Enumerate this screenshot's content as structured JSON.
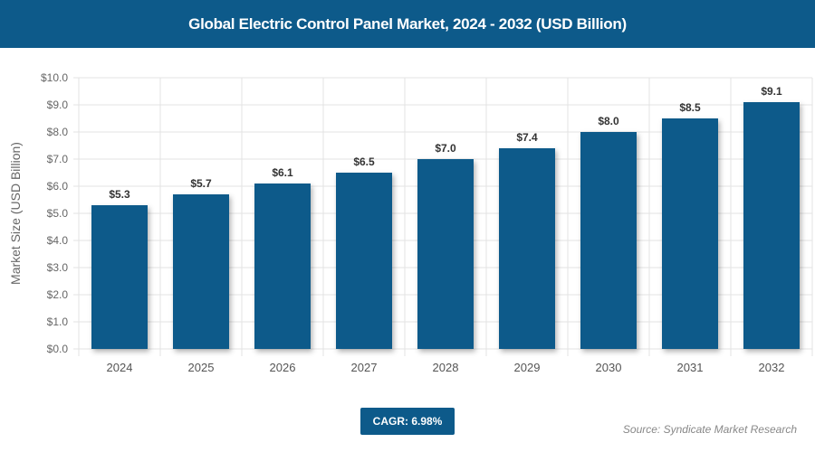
{
  "colors": {
    "bar": "#0d5a8a",
    "header": "#0d5a8a"
  },
  "chart_data": {
    "type": "bar",
    "title": "Global Electric Control Panel Market, 2024 - 2032 (USD Billion)",
    "xlabel": "",
    "ylabel": "Market Size (USD Billion)",
    "categories": [
      "2024",
      "2025",
      "2026",
      "2027",
      "2028",
      "2029",
      "2030",
      "2031",
      "2032"
    ],
    "values": [
      5.3,
      5.7,
      6.1,
      6.5,
      7.0,
      7.4,
      8.0,
      8.5,
      9.1
    ],
    "data_labels": [
      "$5.3",
      "$5.7",
      "$6.1",
      "$6.5",
      "$7.0",
      "$7.4",
      "$8.0",
      "$8.5",
      "$9.1"
    ],
    "ylim": [
      0,
      10
    ],
    "yticks": [
      "$0.0",
      "$1.0",
      "$2.0",
      "$3.0",
      "$4.0",
      "$5.0",
      "$6.0",
      "$7.0",
      "$8.0",
      "$9.0",
      "$10.0"
    ],
    "grid": true,
    "legend": "none"
  },
  "cagr": "CAGR: 6.98%",
  "source": "Source: Syndicate Market Research"
}
